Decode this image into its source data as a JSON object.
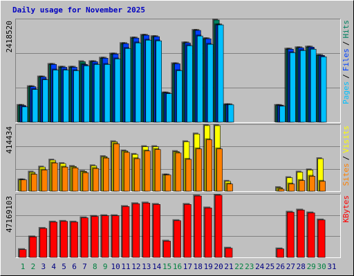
{
  "title": "Daily usage for November 2025",
  "separator": "/",
  "categories": [
    "1",
    "2",
    "3",
    "4",
    "5",
    "6",
    "7",
    "8",
    "9",
    "10",
    "11",
    "12",
    "13",
    "14",
    "15",
    "16",
    "17",
    "18",
    "19",
    "20",
    "21",
    "22",
    "23",
    "24",
    "25",
    "26",
    "27",
    "28",
    "29",
    "30",
    "31"
  ],
  "category_colors": [
    "#008040",
    "#008040",
    "#000080",
    "#000080",
    "#000080",
    "#000080",
    "#000080",
    "#008040",
    "#008040",
    "#000080",
    "#000080",
    "#000080",
    "#000080",
    "#000080",
    "#008040",
    "#008040",
    "#000080",
    "#000080",
    "#000080",
    "#000080",
    "#000080",
    "#008040",
    "#008040",
    "#000080",
    "#000080",
    "#000080",
    "#000080",
    "#000080",
    "#008040",
    "#008040",
    "#000080"
  ],
  "chart_data": [
    {
      "type": "bar",
      "ylim": [
        0,
        2418520
      ],
      "yticks": [
        2418520
      ],
      "series": [
        {
          "name": "Hits",
          "color": "#008060",
          "values": [
            395000,
            839000,
            1069000,
            1366000,
            1300000,
            1300000,
            1431000,
            1431000,
            1514000,
            1612000,
            1859000,
            1991000,
            2057000,
            2024000,
            691000,
            1382000,
            1876000,
            2172000,
            1974000,
            2418520,
            411000,
            0,
            0,
            0,
            0,
            395000,
            1728000,
            1760000,
            1777000,
            1579000,
            0
          ]
        },
        {
          "name": "Files",
          "color": "#0040ff",
          "values": [
            395000,
            839000,
            1069000,
            1366000,
            1300000,
            1300000,
            1366000,
            1431000,
            1514000,
            1612000,
            1859000,
            1991000,
            2057000,
            2024000,
            691000,
            1382000,
            1876000,
            2172000,
            1974000,
            2303000,
            411000,
            0,
            0,
            0,
            0,
            395000,
            1728000,
            1760000,
            1777000,
            1579000,
            0
          ]
        },
        {
          "name": "Pages",
          "color": "#00c0ff",
          "values": [
            362000,
            773000,
            1004000,
            1234000,
            1234000,
            1218000,
            1333000,
            1366000,
            1366000,
            1497000,
            1744000,
            1876000,
            1941000,
            1925000,
            675000,
            1218000,
            1810000,
            2040000,
            1843000,
            2303000,
            411000,
            0,
            0,
            0,
            0,
            378000,
            1645000,
            1695000,
            1728000,
            1547000,
            0
          ]
        }
      ]
    },
    {
      "type": "bar",
      "ylim": [
        0,
        414434
      ],
      "yticks": [
        414434
      ],
      "series": [
        {
          "name": "Visits",
          "color": "#ffff00",
          "values": [
            71000,
            120000,
            152000,
            196000,
            174000,
            156000,
            125000,
            160000,
            218000,
            312000,
            254000,
            232000,
            281000,
            281000,
            102000,
            250000,
            312000,
            361000,
            414434,
            414000,
            62000,
            0,
            0,
            0,
            0,
            22000,
            85000,
            120000,
            134000,
            205000,
            0
          ]
        },
        {
          "name": "Sites",
          "color": "#ff8000",
          "values": [
            71000,
            107000,
            134000,
            178000,
            152000,
            147000,
            116000,
            143000,
            209000,
            299000,
            245000,
            205000,
            254000,
            263000,
            102000,
            241000,
            201000,
            267000,
            325000,
            267000,
            45000,
            0,
            0,
            0,
            0,
            13000,
            45000,
            67000,
            94000,
            62000,
            0
          ]
        }
      ]
    },
    {
      "type": "bar",
      "ylim": [
        0,
        47169103
      ],
      "yticks": [
        47169103
      ],
      "series": [
        {
          "name": "KBytes",
          "color": "#ff0000",
          "values": [
            5896000,
            15544000,
            21977000,
            26801000,
            27337000,
            26801000,
            30017000,
            31089000,
            31625000,
            31625000,
            38593000,
            40737000,
            41273000,
            40201000,
            12328000,
            27873000,
            40201000,
            46633000,
            37521000,
            47169103,
            6968000,
            0,
            0,
            0,
            0,
            6432000,
            34305000,
            35913000,
            33769000,
            28409000,
            0
          ]
        }
      ]
    }
  ]
}
